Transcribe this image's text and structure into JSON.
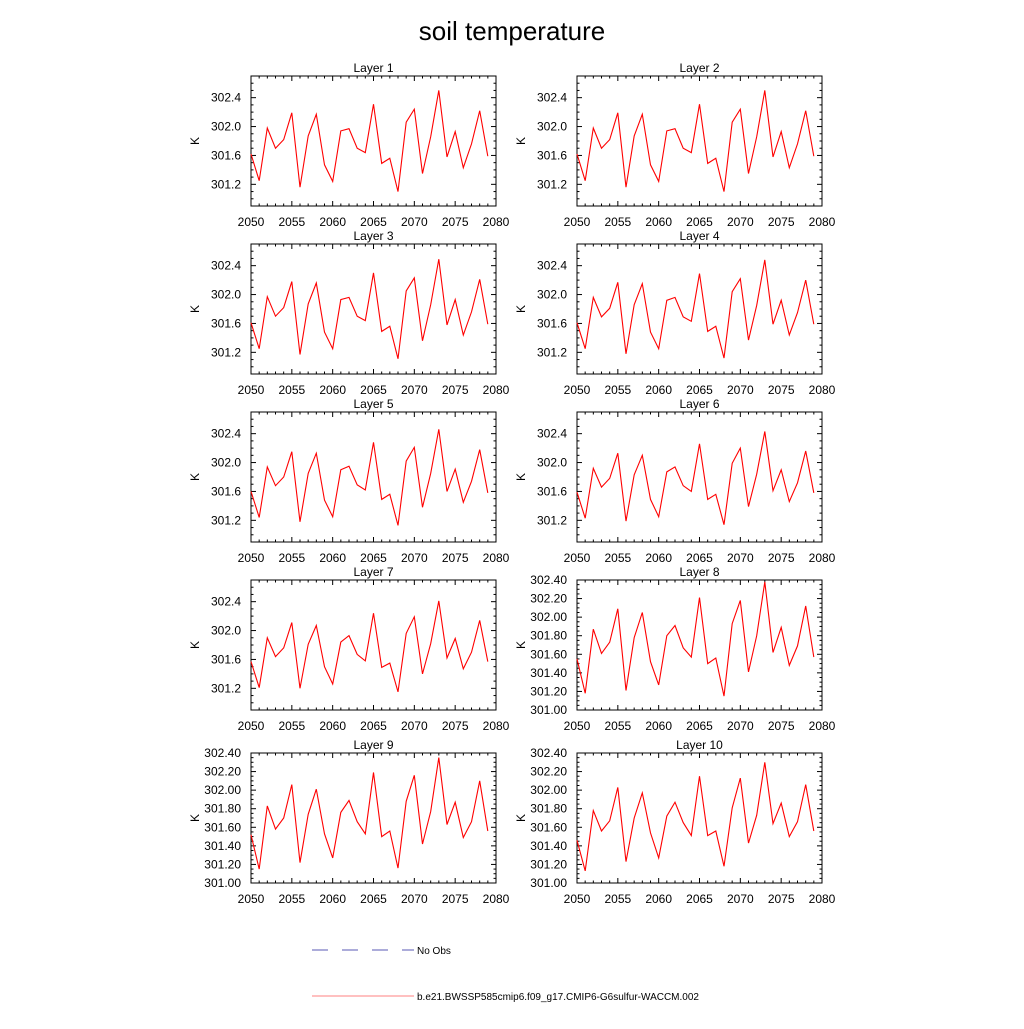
{
  "figure": {
    "title": "soil temperature"
  },
  "legend": {
    "entries": [
      {
        "label": "No Obs",
        "color": "#5a5ab4",
        "style": "dashed"
      },
      {
        "label": "b.e21.BWSSP585cmip6.f09_g17.CMIP6-G6sulfur-WACCM.002",
        "color": "#ff8080",
        "style": "solid"
      }
    ]
  },
  "chart_data": [
    {
      "type": "line",
      "title": "Layer 1",
      "ylabel": "K",
      "xlim": [
        2050,
        2080
      ],
      "xticks": [
        2050,
        2055,
        2060,
        2065,
        2070,
        2075,
        2080
      ],
      "ylim": [
        300.9,
        302.7
      ],
      "yticks": [
        301.2,
        301.6,
        302.0,
        302.4
      ],
      "ytick_labels": [
        "301.2",
        "301.6",
        "302.0",
        "302.4"
      ],
      "series": [
        {
          "color": "#ff0000",
          "x": [
            2050,
            2051,
            2052,
            2053,
            2054,
            2055,
            2056,
            2057,
            2058,
            2059,
            2060,
            2061,
            2062,
            2063,
            2064,
            2065,
            2066,
            2067,
            2068,
            2069,
            2070,
            2071,
            2072,
            2073,
            2074,
            2075,
            2076,
            2077,
            2078,
            2079
          ],
          "values": [
            301.62,
            301.25,
            301.98,
            301.7,
            301.82,
            302.19,
            301.16,
            301.87,
            302.17,
            301.47,
            301.24,
            301.94,
            301.97,
            301.7,
            301.64,
            302.31,
            301.49,
            301.56,
            301.1,
            302.06,
            302.24,
            301.35,
            301.86,
            302.5,
            301.58,
            301.93,
            301.43,
            301.76,
            302.22,
            301.59
          ]
        }
      ]
    },
    {
      "type": "line",
      "title": "Layer 2",
      "ylabel": "K",
      "xlim": [
        2050,
        2080
      ],
      "xticks": [
        2050,
        2055,
        2060,
        2065,
        2070,
        2075,
        2080
      ],
      "ylim": [
        300.9,
        302.7
      ],
      "yticks": [
        301.2,
        301.6,
        302.0,
        302.4
      ],
      "ytick_labels": [
        "301.2",
        "301.6",
        "302.0",
        "302.4"
      ],
      "series": [
        {
          "color": "#ff0000",
          "x": [
            2050,
            2051,
            2052,
            2053,
            2054,
            2055,
            2056,
            2057,
            2058,
            2059,
            2060,
            2061,
            2062,
            2063,
            2064,
            2065,
            2066,
            2067,
            2068,
            2069,
            2070,
            2071,
            2072,
            2073,
            2074,
            2075,
            2076,
            2077,
            2078,
            2079
          ],
          "values": [
            301.62,
            301.25,
            301.98,
            301.7,
            301.82,
            302.19,
            301.16,
            301.87,
            302.17,
            301.47,
            301.24,
            301.94,
            301.97,
            301.7,
            301.64,
            302.31,
            301.49,
            301.56,
            301.1,
            302.06,
            302.24,
            301.35,
            301.86,
            302.5,
            301.58,
            301.93,
            301.43,
            301.76,
            302.22,
            301.59
          ]
        }
      ]
    },
    {
      "type": "line",
      "title": "Layer 3",
      "ylabel": "K",
      "xlim": [
        2050,
        2080
      ],
      "xticks": [
        2050,
        2055,
        2060,
        2065,
        2070,
        2075,
        2080
      ],
      "ylim": [
        300.9,
        302.7
      ],
      "yticks": [
        301.2,
        301.6,
        302.0,
        302.4
      ],
      "ytick_labels": [
        "301.2",
        "301.6",
        "302.0",
        "302.4"
      ],
      "series": [
        {
          "color": "#ff0000",
          "x": [
            2050,
            2051,
            2052,
            2053,
            2054,
            2055,
            2056,
            2057,
            2058,
            2059,
            2060,
            2061,
            2062,
            2063,
            2064,
            2065,
            2066,
            2067,
            2068,
            2069,
            2070,
            2071,
            2072,
            2073,
            2074,
            2075,
            2076,
            2077,
            2078,
            2079
          ],
          "values": [
            301.61,
            301.25,
            301.97,
            301.7,
            301.82,
            302.18,
            301.17,
            301.87,
            302.16,
            301.48,
            301.25,
            301.93,
            301.96,
            301.7,
            301.64,
            302.3,
            301.49,
            301.56,
            301.11,
            302.05,
            302.23,
            301.36,
            301.86,
            302.49,
            301.58,
            301.93,
            301.44,
            301.76,
            302.21,
            301.59
          ]
        }
      ]
    },
    {
      "type": "line",
      "title": "Layer 4",
      "ylabel": "K",
      "xlim": [
        2050,
        2080
      ],
      "xticks": [
        2050,
        2055,
        2060,
        2065,
        2070,
        2075,
        2080
      ],
      "ylim": [
        300.9,
        302.7
      ],
      "yticks": [
        301.2,
        301.6,
        302.0,
        302.4
      ],
      "ytick_labels": [
        "301.2",
        "301.6",
        "302.0",
        "302.4"
      ],
      "series": [
        {
          "color": "#ff0000",
          "x": [
            2050,
            2051,
            2052,
            2053,
            2054,
            2055,
            2056,
            2057,
            2058,
            2059,
            2060,
            2061,
            2062,
            2063,
            2064,
            2065,
            2066,
            2067,
            2068,
            2069,
            2070,
            2071,
            2072,
            2073,
            2074,
            2075,
            2076,
            2077,
            2078,
            2079
          ],
          "values": [
            301.61,
            301.25,
            301.96,
            301.69,
            301.81,
            302.17,
            301.18,
            301.86,
            302.15,
            301.48,
            301.25,
            301.92,
            301.96,
            301.69,
            301.63,
            302.29,
            301.49,
            301.56,
            301.12,
            302.04,
            302.22,
            301.37,
            301.85,
            302.48,
            301.59,
            301.92,
            301.44,
            301.75,
            302.2,
            301.59
          ]
        }
      ]
    },
    {
      "type": "line",
      "title": "Layer 5",
      "ylabel": "K",
      "xlim": [
        2050,
        2080
      ],
      "xticks": [
        2050,
        2055,
        2060,
        2065,
        2070,
        2075,
        2080
      ],
      "ylim": [
        300.9,
        302.7
      ],
      "yticks": [
        301.2,
        301.6,
        302.0,
        302.4
      ],
      "ytick_labels": [
        "301.2",
        "301.6",
        "302.0",
        "302.4"
      ],
      "series": [
        {
          "color": "#ff0000",
          "x": [
            2050,
            2051,
            2052,
            2053,
            2054,
            2055,
            2056,
            2057,
            2058,
            2059,
            2060,
            2061,
            2062,
            2063,
            2064,
            2065,
            2066,
            2067,
            2068,
            2069,
            2070,
            2071,
            2072,
            2073,
            2074,
            2075,
            2076,
            2077,
            2078,
            2079
          ],
          "values": [
            301.6,
            301.24,
            301.94,
            301.68,
            301.8,
            302.15,
            301.18,
            301.85,
            302.13,
            301.48,
            301.25,
            301.9,
            301.95,
            301.69,
            301.62,
            302.28,
            301.49,
            301.56,
            301.13,
            302.02,
            302.21,
            301.38,
            301.85,
            302.46,
            301.6,
            301.91,
            301.45,
            301.74,
            302.18,
            301.58
          ]
        }
      ]
    },
    {
      "type": "line",
      "title": "Layer 6",
      "ylabel": "K",
      "xlim": [
        2050,
        2080
      ],
      "xticks": [
        2050,
        2055,
        2060,
        2065,
        2070,
        2075,
        2080
      ],
      "ylim": [
        300.9,
        302.7
      ],
      "yticks": [
        301.2,
        301.6,
        302.0,
        302.4
      ],
      "ytick_labels": [
        "301.2",
        "301.6",
        "302.0",
        "302.4"
      ],
      "series": [
        {
          "color": "#ff0000",
          "x": [
            2050,
            2051,
            2052,
            2053,
            2054,
            2055,
            2056,
            2057,
            2058,
            2059,
            2060,
            2061,
            2062,
            2063,
            2064,
            2065,
            2066,
            2067,
            2068,
            2069,
            2070,
            2071,
            2072,
            2073,
            2074,
            2075,
            2076,
            2077,
            2078,
            2079
          ],
          "values": [
            301.59,
            301.23,
            301.92,
            301.66,
            301.78,
            302.13,
            301.19,
            301.83,
            302.1,
            301.49,
            301.25,
            301.87,
            301.94,
            301.68,
            301.6,
            302.26,
            301.49,
            301.56,
            301.14,
            301.99,
            302.2,
            301.39,
            301.84,
            302.43,
            301.61,
            301.9,
            301.46,
            301.72,
            302.16,
            301.58
          ]
        }
      ]
    },
    {
      "type": "line",
      "title": "Layer 7",
      "ylabel": "K",
      "xlim": [
        2050,
        2080
      ],
      "xticks": [
        2050,
        2055,
        2060,
        2065,
        2070,
        2075,
        2080
      ],
      "ylim": [
        300.9,
        302.7
      ],
      "yticks": [
        301.2,
        301.6,
        302.0,
        302.4
      ],
      "ytick_labels": [
        "301.2",
        "301.6",
        "302.0",
        "302.4"
      ],
      "series": [
        {
          "color": "#ff0000",
          "x": [
            2050,
            2051,
            2052,
            2053,
            2054,
            2055,
            2056,
            2057,
            2058,
            2059,
            2060,
            2061,
            2062,
            2063,
            2064,
            2065,
            2066,
            2067,
            2068,
            2069,
            2070,
            2071,
            2072,
            2073,
            2074,
            2075,
            2076,
            2077,
            2078,
            2079
          ],
          "values": [
            301.57,
            301.21,
            301.9,
            301.64,
            301.76,
            302.11,
            301.2,
            301.81,
            302.07,
            301.5,
            301.26,
            301.84,
            301.93,
            301.67,
            301.58,
            302.24,
            301.49,
            301.55,
            301.15,
            301.96,
            302.19,
            301.4,
            301.82,
            302.41,
            301.62,
            301.89,
            301.47,
            301.7,
            302.14,
            301.57
          ]
        }
      ]
    },
    {
      "type": "line",
      "title": "Layer 8",
      "ylabel": "K",
      "xlim": [
        2050,
        2080
      ],
      "xticks": [
        2050,
        2055,
        2060,
        2065,
        2070,
        2075,
        2080
      ],
      "ylim": [
        301.0,
        302.4
      ],
      "yticks": [
        301.0,
        301.2,
        301.4,
        301.6,
        301.8,
        302.0,
        302.2,
        302.4
      ],
      "ytick_labels": [
        "301.00",
        "301.20",
        "301.40",
        "301.60",
        "301.80",
        "302.00",
        "302.20",
        "302.40"
      ],
      "series": [
        {
          "color": "#ff0000",
          "x": [
            2050,
            2051,
            2052,
            2053,
            2054,
            2055,
            2056,
            2057,
            2058,
            2059,
            2060,
            2061,
            2062,
            2063,
            2064,
            2065,
            2066,
            2067,
            2068,
            2069,
            2070,
            2071,
            2072,
            2073,
            2074,
            2075,
            2076,
            2077,
            2078,
            2079
          ],
          "values": [
            301.55,
            301.18,
            301.87,
            301.61,
            301.73,
            302.09,
            301.21,
            301.78,
            302.05,
            301.52,
            301.27,
            301.8,
            301.91,
            301.67,
            301.57,
            302.21,
            301.5,
            301.56,
            301.15,
            301.93,
            302.18,
            301.41,
            301.8,
            302.38,
            301.62,
            301.89,
            301.48,
            301.69,
            302.12,
            301.57
          ]
        }
      ]
    },
    {
      "type": "line",
      "title": "Layer 9",
      "ylabel": "K",
      "xlim": [
        2050,
        2080
      ],
      "xticks": [
        2050,
        2055,
        2060,
        2065,
        2070,
        2075,
        2080
      ],
      "ylim": [
        301.0,
        302.4
      ],
      "yticks": [
        301.0,
        301.2,
        301.4,
        301.6,
        301.8,
        302.0,
        302.2,
        302.4
      ],
      "ytick_labels": [
        "301.00",
        "301.20",
        "301.40",
        "301.60",
        "301.80",
        "302.00",
        "302.20",
        "302.40"
      ],
      "series": [
        {
          "color": "#ff0000",
          "x": [
            2050,
            2051,
            2052,
            2053,
            2054,
            2055,
            2056,
            2057,
            2058,
            2059,
            2060,
            2061,
            2062,
            2063,
            2064,
            2065,
            2066,
            2067,
            2068,
            2069,
            2070,
            2071,
            2072,
            2073,
            2074,
            2075,
            2076,
            2077,
            2078,
            2079
          ],
          "values": [
            301.52,
            301.15,
            301.83,
            301.58,
            301.7,
            302.06,
            301.22,
            301.74,
            302.01,
            301.53,
            301.27,
            301.76,
            301.89,
            301.66,
            301.53,
            302.19,
            301.5,
            301.56,
            301.16,
            301.88,
            302.16,
            301.42,
            301.77,
            302.35,
            301.63,
            301.87,
            301.49,
            301.66,
            302.1,
            301.56
          ]
        }
      ]
    },
    {
      "type": "line",
      "title": "Layer 10",
      "ylabel": "K",
      "xlim": [
        2050,
        2080
      ],
      "xticks": [
        2050,
        2055,
        2060,
        2065,
        2070,
        2075,
        2080
      ],
      "ylim": [
        301.0,
        302.4
      ],
      "yticks": [
        301.0,
        301.2,
        301.4,
        301.6,
        301.8,
        302.0,
        302.2,
        302.4
      ],
      "ytick_labels": [
        "301.00",
        "301.20",
        "301.40",
        "301.60",
        "301.80",
        "302.00",
        "302.20",
        "302.40"
      ],
      "series": [
        {
          "color": "#ff0000",
          "x": [
            2050,
            2051,
            2052,
            2053,
            2054,
            2055,
            2056,
            2057,
            2058,
            2059,
            2060,
            2061,
            2062,
            2063,
            2064,
            2065,
            2066,
            2067,
            2068,
            2069,
            2070,
            2071,
            2072,
            2073,
            2074,
            2075,
            2076,
            2077,
            2078,
            2079
          ],
          "values": [
            301.46,
            301.13,
            301.78,
            301.56,
            301.67,
            302.03,
            301.23,
            301.7,
            301.97,
            301.54,
            301.27,
            301.72,
            301.87,
            301.65,
            301.51,
            302.15,
            301.51,
            301.56,
            301.18,
            301.81,
            302.13,
            301.43,
            301.73,
            302.3,
            301.64,
            301.86,
            301.5,
            301.66,
            302.06,
            301.56
          ]
        }
      ]
    }
  ]
}
